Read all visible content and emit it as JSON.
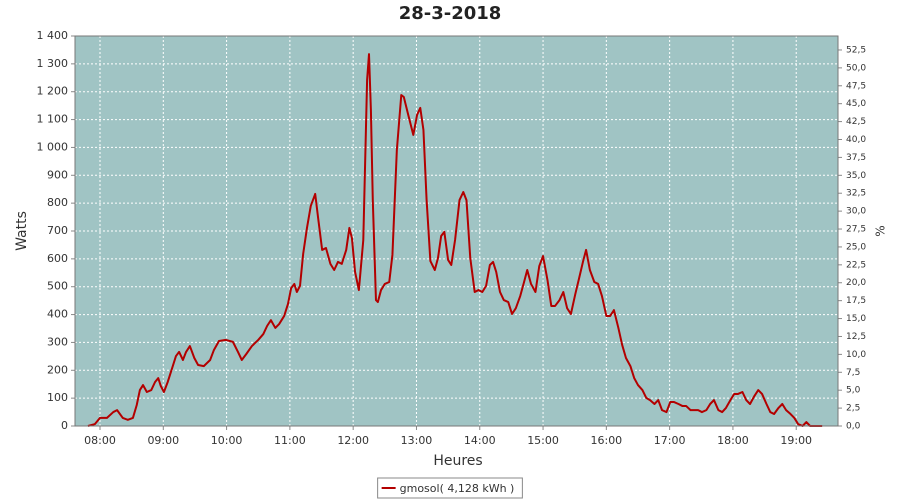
{
  "chart_data": {
    "type": "line",
    "title": "28-3-2018",
    "x_label": "Heures",
    "y_label": "Watts",
    "y2_label": "%",
    "x": [
      7.81,
      7.92,
      8.0,
      8.11,
      8.21,
      8.27,
      8.36,
      8.44,
      8.52,
      8.58,
      8.63,
      8.68,
      8.74,
      8.81,
      8.87,
      8.92,
      8.96,
      9.01,
      9.07,
      9.14,
      9.2,
      9.25,
      9.31,
      9.36,
      9.42,
      9.49,
      9.55,
      9.64,
      9.74,
      9.8,
      9.88,
      9.99,
      10.1,
      10.18,
      10.24,
      10.31,
      10.4,
      10.5,
      10.58,
      10.64,
      10.7,
      10.77,
      10.83,
      10.91,
      10.97,
      11.02,
      11.07,
      11.11,
      11.16,
      11.21,
      11.27,
      11.33,
      11.4,
      11.45,
      11.51,
      11.57,
      11.64,
      11.7,
      11.76,
      11.82,
      11.89,
      11.94,
      11.98,
      12.03,
      12.09,
      12.16,
      12.22,
      12.25,
      12.28,
      12.31,
      12.36,
      12.39,
      12.44,
      12.5,
      12.57,
      12.62,
      12.69,
      12.76,
      12.8,
      12.87,
      12.95,
      13.01,
      13.06,
      13.11,
      13.16,
      13.22,
      13.29,
      13.34,
      13.39,
      13.44,
      13.5,
      13.55,
      13.61,
      13.68,
      13.74,
      13.79,
      13.85,
      13.92,
      13.98,
      14.04,
      14.1,
      14.16,
      14.21,
      14.26,
      14.32,
      14.38,
      14.45,
      14.51,
      14.57,
      14.64,
      14.7,
      14.75,
      14.81,
      14.88,
      14.94,
      15.0,
      15.07,
      15.13,
      15.19,
      15.26,
      15.32,
      15.38,
      15.44,
      15.51,
      15.57,
      15.63,
      15.68,
      15.74,
      15.81,
      15.87,
      15.93,
      16.0,
      16.06,
      16.12,
      16.19,
      16.25,
      16.31,
      16.38,
      16.44,
      16.5,
      16.57,
      16.63,
      16.69,
      16.76,
      16.82,
      16.88,
      16.95,
      17.01,
      17.07,
      17.14,
      17.2,
      17.26,
      17.33,
      17.39,
      17.45,
      17.51,
      17.58,
      17.64,
      17.7,
      17.77,
      17.83,
      17.89,
      17.96,
      18.02,
      18.08,
      18.15,
      18.21,
      18.27,
      18.34,
      18.4,
      18.46,
      18.53,
      18.59,
      18.65,
      18.72,
      18.78,
      18.84,
      18.91,
      18.97,
      19.03,
      19.1,
      19.16,
      19.22,
      19.28,
      19.35,
      19.41
    ],
    "series": [
      {
        "name": "gmosol( 4,128 kWh )",
        "color": "#b30000",
        "values": [
          0,
          7,
          29,
          29,
          50,
          57,
          29,
          22,
          29,
          75,
          129,
          147,
          122,
          129,
          158,
          172,
          144,
          122,
          158,
          208,
          251,
          266,
          237,
          266,
          287,
          244,
          219,
          215,
          237,
          273,
          305,
          309,
          302,
          266,
          237,
          258,
          287,
          309,
          330,
          359,
          380,
          352,
          366,
          395,
          438,
          495,
          510,
          481,
          503,
          618,
          711,
          790,
          833,
          740,
          632,
          639,
          582,
          560,
          589,
          582,
          632,
          711,
          675,
          553,
          488,
          668,
          1242,
          1335,
          1134,
          811,
          452,
          445,
          488,
          510,
          517,
          614,
          991,
          1188,
          1181,
          1117,
          1045,
          1117,
          1142,
          1063,
          812,
          592,
          560,
          603,
          682,
          697,
          596,
          578,
          668,
          811,
          840,
          811,
          603,
          481,
          488,
          481,
          503,
          578,
          589,
          553,
          481,
          452,
          445,
          402,
          423,
          467,
          517,
          560,
          510,
          481,
          574,
          610,
          524,
          431,
          431,
          452,
          481,
          423,
          402,
          474,
          531,
          589,
          632,
          560,
          517,
          510,
          467,
          395,
          395,
          416,
          352,
          291,
          244,
          215,
          172,
          147,
          129,
          101,
          93,
          79,
          93,
          57,
          50,
          86,
          86,
          79,
          72,
          72,
          57,
          57,
          57,
          50,
          57,
          79,
          93,
          57,
          50,
          65,
          93,
          115,
          115,
          122,
          93,
          79,
          108,
          129,
          115,
          79,
          50,
          43,
          65,
          79,
          57,
          43,
          29,
          7,
          0,
          14,
          0,
          0,
          0,
          0
        ]
      }
    ],
    "xlim": [
      7.605,
      19.66
    ],
    "xticks": [
      {
        "value": 8,
        "label": "08:00"
      },
      {
        "value": 9,
        "label": "09:00"
      },
      {
        "value": 10,
        "label": "10:00"
      },
      {
        "value": 11,
        "label": "11:00"
      },
      {
        "value": 12,
        "label": "12:00"
      },
      {
        "value": 13,
        "label": "13:00"
      },
      {
        "value": 14,
        "label": "14:00"
      },
      {
        "value": 15,
        "label": "15:00"
      },
      {
        "value": 16,
        "label": "16:00"
      },
      {
        "value": 17,
        "label": "17:00"
      },
      {
        "value": 18,
        "label": "18:00"
      },
      {
        "value": 19,
        "label": "19:00"
      }
    ],
    "ylim": [
      0,
      1400
    ],
    "yticks": [
      0,
      100,
      200,
      300,
      400,
      500,
      600,
      700,
      800,
      900,
      {
        "value": 1000,
        "label": "1 000"
      },
      {
        "value": 1100,
        "label": "1 100"
      },
      {
        "value": 1200,
        "label": "1 200"
      },
      {
        "value": 1300,
        "label": "1 300"
      },
      {
        "value": 1400,
        "label": "1 400"
      }
    ],
    "y2lim": [
      0,
      54.45
    ],
    "y2ticks": [
      {
        "value": 0,
        "label": "0,0"
      },
      {
        "value": 2.5,
        "label": "2,5"
      },
      {
        "value": 5,
        "label": "5,0"
      },
      {
        "value": 7.5,
        "label": "7,5"
      },
      {
        "value": 10,
        "label": "10,0"
      },
      {
        "value": 12.5,
        "label": "12,5"
      },
      {
        "value": 15,
        "label": "15,0"
      },
      {
        "value": 17.5,
        "label": "17,5"
      },
      {
        "value": 20,
        "label": "20,0"
      },
      {
        "value": 22.5,
        "label": "22,5"
      },
      {
        "value": 25,
        "label": "25,0"
      },
      {
        "value": 27.5,
        "label": "27,5"
      },
      {
        "value": 30,
        "label": "30,0"
      },
      {
        "value": 32.5,
        "label": "32,5"
      },
      {
        "value": 35,
        "label": "35,0"
      },
      {
        "value": 37.5,
        "label": "37,5"
      },
      {
        "value": 40,
        "label": "40,0"
      },
      {
        "value": 42.5,
        "label": "42,5"
      },
      {
        "value": 45,
        "label": "45,0"
      },
      {
        "value": 47.5,
        "label": "47,5"
      },
      {
        "value": 50,
        "label": "50,0"
      },
      {
        "value": 52.5,
        "label": "52,5"
      }
    ],
    "grid": true,
    "plot_background": "#a0c4c4",
    "legend": "bottom"
  }
}
